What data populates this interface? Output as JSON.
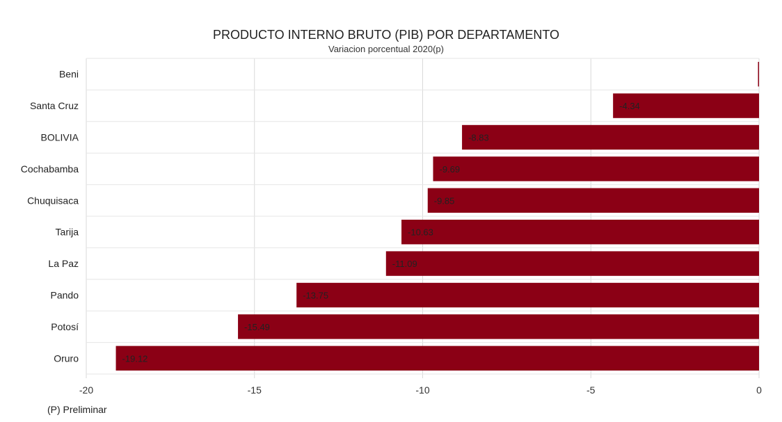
{
  "chart_data": {
    "type": "bar",
    "orientation": "horizontal",
    "title": "PRODUCTO INTERNO BRUTO (PIB) POR DEPARTAMENTO",
    "subtitle": "Variacion porcentual 2020(p)",
    "categories": [
      "Beni",
      "Santa Cruz",
      "BOLIVIA",
      "Cochabamba",
      "Chuquisaca",
      "Tarija",
      "La Paz",
      "Pando",
      "Potosí",
      "Oruro"
    ],
    "values": [
      0,
      -4.34,
      -8.83,
      -9.69,
      -9.85,
      -10.63,
      -11.09,
      -13.75,
      -15.49,
      -19.12
    ],
    "data_labels": [
      "",
      "-4.34",
      "-8.83",
      "-9.69",
      "-9.85",
      "-10.63",
      "-11.09",
      "-13.75",
      "-15.49",
      "-19.12"
    ],
    "xlim": [
      -20,
      0
    ],
    "xticks": [
      -20,
      -15,
      -10,
      -5,
      0
    ],
    "xtick_labels": [
      "-20",
      "-15",
      "-10",
      "-5",
      "0"
    ],
    "grid": true,
    "bar_color": "#8b0015"
  },
  "footnote": "(P) Preliminar"
}
